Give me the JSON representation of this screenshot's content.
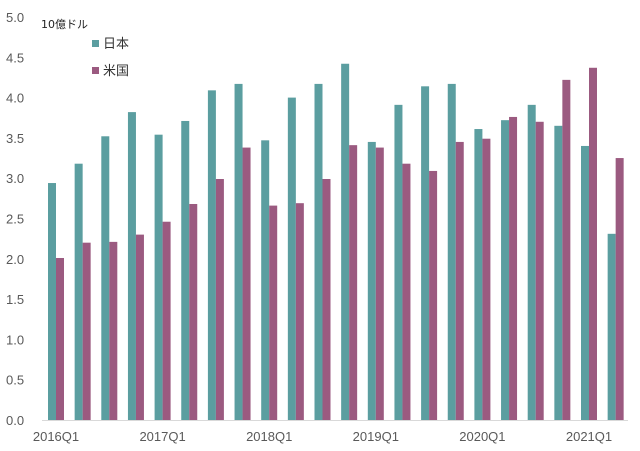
{
  "chart_data": {
    "type": "bar",
    "title": "",
    "unit_label": "10億ドル",
    "xlabel": "",
    "ylabel": "10億ドル",
    "ylim": [
      0,
      5.0
    ],
    "yticks": [
      "0.0",
      "0.5",
      "1.0",
      "1.5",
      "2.0",
      "2.5",
      "3.0",
      "3.5",
      "4.0",
      "4.5",
      "5.0"
    ],
    "grid": false,
    "legend_position": "top-left inside",
    "categories": [
      "2016Q1",
      "2016Q2",
      "2016Q3",
      "2016Q4",
      "2017Q1",
      "2017Q2",
      "2017Q3",
      "2017Q4",
      "2018Q1",
      "2018Q2",
      "2018Q3",
      "2018Q4",
      "2019Q1",
      "2019Q2",
      "2019Q3",
      "2019Q4",
      "2020Q1",
      "2020Q2",
      "2020Q3",
      "2020Q4",
      "2021Q1",
      "2021Q2"
    ],
    "xtick_labels": [
      "2016Q1",
      "",
      "",
      "",
      "2017Q1",
      "",
      "",
      "",
      "2018Q1",
      "",
      "",
      "",
      "2019Q1",
      "",
      "",
      "",
      "2020Q1",
      "",
      "",
      "",
      "2021Q1",
      ""
    ],
    "series": [
      {
        "name": "日本",
        "color": "#5b9ea0",
        "values": [
          2.94,
          3.18,
          3.52,
          3.82,
          3.54,
          3.71,
          4.09,
          4.17,
          3.47,
          4.0,
          4.17,
          4.42,
          3.45,
          3.91,
          4.14,
          4.17,
          3.61,
          3.72,
          3.91,
          3.65,
          3.4,
          2.31
        ]
      },
      {
        "name": "米国",
        "color": "#9b5a80",
        "values": [
          2.01,
          2.2,
          2.21,
          2.3,
          2.46,
          2.68,
          2.99,
          3.38,
          2.66,
          2.69,
          2.99,
          3.41,
          3.38,
          3.18,
          3.09,
          3.45,
          3.49,
          3.76,
          3.7,
          4.22,
          4.37,
          3.25
        ]
      }
    ]
  }
}
